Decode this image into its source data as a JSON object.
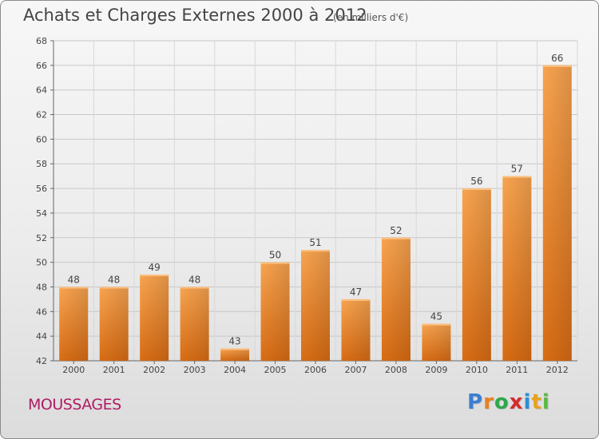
{
  "header": {
    "title": "Achats et Charges Externes 2000 à 2012",
    "subtitle": "(en milliers d'€)"
  },
  "footer": {
    "place": "MOUSSAGES",
    "logo_letters": [
      "P",
      "r",
      "o",
      "x",
      "i",
      "t",
      "i"
    ],
    "logo_colors": [
      "#3a7fd0",
      "#e8811f",
      "#2ea84a",
      "#d42b2b",
      "#2b8fd6",
      "#e8a21f",
      "#5ab844"
    ]
  },
  "chart_data": {
    "type": "bar",
    "title": "Achats et Charges Externes 2000 à 2012",
    "subtitle": "(en milliers d'€)",
    "categories": [
      "2000",
      "2001",
      "2002",
      "2003",
      "2004",
      "2005",
      "2006",
      "2007",
      "2008",
      "2009",
      "2010",
      "2011",
      "2012"
    ],
    "values": [
      48,
      48,
      49,
      48,
      43,
      50,
      51,
      47,
      52,
      45,
      56,
      57,
      66
    ],
    "ylim": [
      42,
      68
    ],
    "yticks": [
      42,
      44,
      46,
      48,
      50,
      52,
      54,
      56,
      58,
      60,
      62,
      64,
      66,
      68
    ],
    "grid": true,
    "bar_color": "#f0973f",
    "xlabel": "",
    "ylabel": ""
  }
}
